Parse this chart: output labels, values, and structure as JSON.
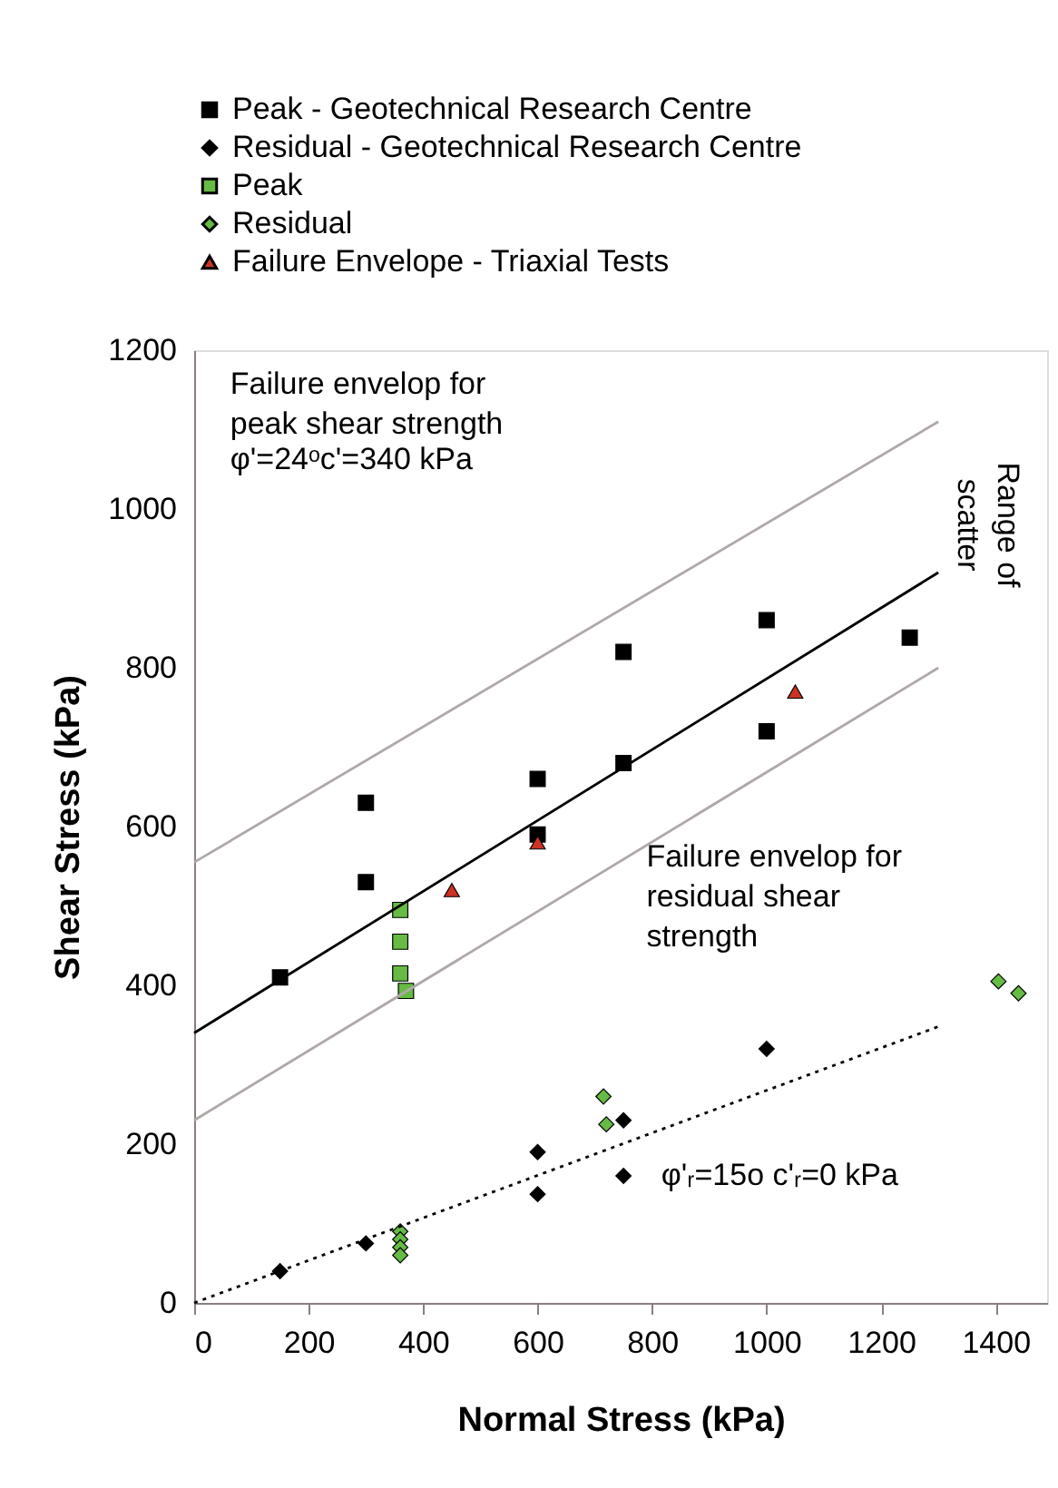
{
  "chart_data": {
    "type": "scatter",
    "xlabel": "Normal Stress (kPa)",
    "ylabel": "Shear Stress (kPa)",
    "xlim": [
      0,
      1490
    ],
    "ylim": [
      0,
      1200
    ],
    "xticks": [
      0,
      200,
      400,
      600,
      800,
      1000,
      1200,
      1400
    ],
    "yticks": [
      0,
      200,
      400,
      600,
      800,
      1000,
      1200
    ],
    "grid": false,
    "legend": "top",
    "annotations": [
      "Failure envelop for\npeak shear strength",
      "φ'=24ᵒc'=340 kPa",
      "Failure envelop for\nresidual shear\nstrength",
      "φ'ᵣ=15o c'ᵣ=0 kPa",
      "Range of\nscatter"
    ],
    "series": [
      {
        "name": "Peak - Geotechnical Research Centre",
        "marker": "square",
        "color": "#000000",
        "x": [
          150,
          300,
          300,
          600,
          600,
          750,
          750,
          1000,
          1000,
          1250
        ],
        "values": [
          410,
          630,
          530,
          660,
          590,
          820,
          680,
          860,
          720,
          838
        ]
      },
      {
        "name": "Residual - Geotechnical Research Centre",
        "marker": "diamond",
        "color": "#000000",
        "x": [
          150,
          300,
          600,
          600,
          750,
          750,
          1000
        ],
        "values": [
          40,
          75,
          190,
          137,
          230,
          160,
          320
        ]
      },
      {
        "name": "Peak",
        "marker": "square",
        "color": "#66bb44",
        "x": [
          360,
          360,
          360,
          370
        ],
        "values": [
          495,
          455,
          415,
          393
        ]
      },
      {
        "name": "Residual",
        "marker": "diamond",
        "color": "#66bb44",
        "x": [
          360,
          360,
          360,
          360,
          715,
          720,
          1405,
          1440
        ],
        "values": [
          90,
          80,
          70,
          60,
          260,
          225,
          405,
          390
        ]
      },
      {
        "name": "Failure Envelope - Triaxial Tests",
        "marker": "triangle",
        "color": "#cc3322",
        "x": [
          450,
          600,
          1050
        ],
        "values": [
          520,
          580,
          770
        ]
      },
      {
        "type": "line",
        "line_style": "solid",
        "color": "#000000",
        "x": [
          0,
          1300
        ],
        "values": [
          340,
          920
        ]
      },
      {
        "type": "line",
        "line_style": "solid",
        "color": "#b0a8a8",
        "x": [
          0,
          1300
        ],
        "values": [
          555,
          1110
        ]
      },
      {
        "type": "line",
        "line_style": "solid",
        "color": "#b0a8a8",
        "x": [
          0,
          1300
        ],
        "values": [
          230,
          800
        ]
      },
      {
        "type": "line",
        "line_style": "dotted",
        "color": "#000000",
        "x": [
          0,
          1300
        ],
        "values": [
          0,
          348
        ]
      }
    ]
  }
}
